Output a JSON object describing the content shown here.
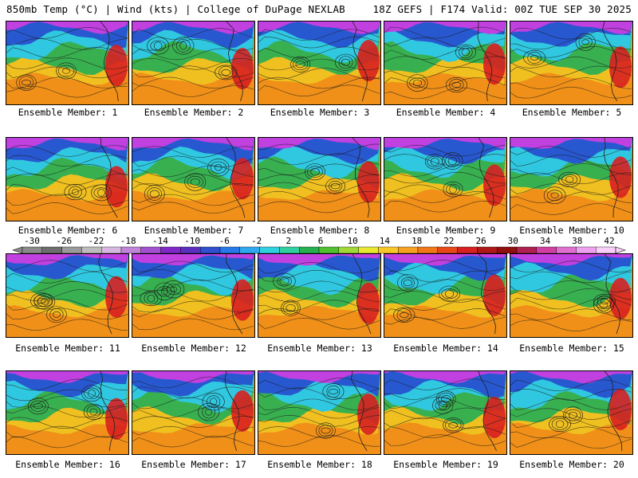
{
  "header": {
    "left": "850mb Temp (°C) | Wind (kts) | College of DuPage NEXLAB",
    "right": "18Z GEFS | F174 Valid: 00Z TUE SEP 30 2025"
  },
  "members": [
    {
      "label": "Ensemble Member: 1"
    },
    {
      "label": "Ensemble Member: 2"
    },
    {
      "label": "Ensemble Member: 3"
    },
    {
      "label": "Ensemble Member: 4"
    },
    {
      "label": "Ensemble Member: 5"
    },
    {
      "label": "Ensemble Member: 6"
    },
    {
      "label": "Ensemble Member: 7"
    },
    {
      "label": "Ensemble Member: 8"
    },
    {
      "label": "Ensemble Member: 9"
    },
    {
      "label": "Ensemble Member: 10"
    },
    {
      "label": "Ensemble Member: 11"
    },
    {
      "label": "Ensemble Member: 12"
    },
    {
      "label": "Ensemble Member: 13"
    },
    {
      "label": "Ensemble Member: 14"
    },
    {
      "label": "Ensemble Member: 15"
    },
    {
      "label": "Ensemble Member: 16"
    },
    {
      "label": "Ensemble Member: 17"
    },
    {
      "label": "Ensemble Member: 18"
    },
    {
      "label": "Ensemble Member: 19"
    },
    {
      "label": "Ensemble Member: 20"
    }
  ],
  "colorbar": {
    "labels": [
      "-30",
      "-26",
      "-22",
      "-18",
      "-14",
      "-10",
      "-6",
      "-2",
      "2",
      "6",
      "10",
      "14",
      "18",
      "22",
      "26",
      "30",
      "34",
      "38",
      "42"
    ],
    "colors": [
      "#8a8a8a",
      "#6e6e6e",
      "#9a9a9a",
      "#bdbdbd",
      "#d6b8e0",
      "#c084d8",
      "#a24fd0",
      "#8028c8",
      "#5a2fc0",
      "#3050d0",
      "#2878e8",
      "#30a8f0",
      "#30d0e0",
      "#30d0a0",
      "#28b050",
      "#50c030",
      "#a0d838",
      "#e8e830",
      "#f8c828",
      "#f8a020",
      "#f07818",
      "#e84818",
      "#d82020",
      "#b01818",
      "#901010",
      "#b02050",
      "#d040a0",
      "#e070d0",
      "#f0a0f0",
      "#f8d0f8"
    ]
  },
  "palette": {
    "pole": "#c040e0",
    "cold": "#2858d0",
    "cool": "#30c8e0",
    "mild": "#38b050",
    "warm": "#f0c020",
    "hot": "#f09018",
    "heat": "#d82020"
  }
}
